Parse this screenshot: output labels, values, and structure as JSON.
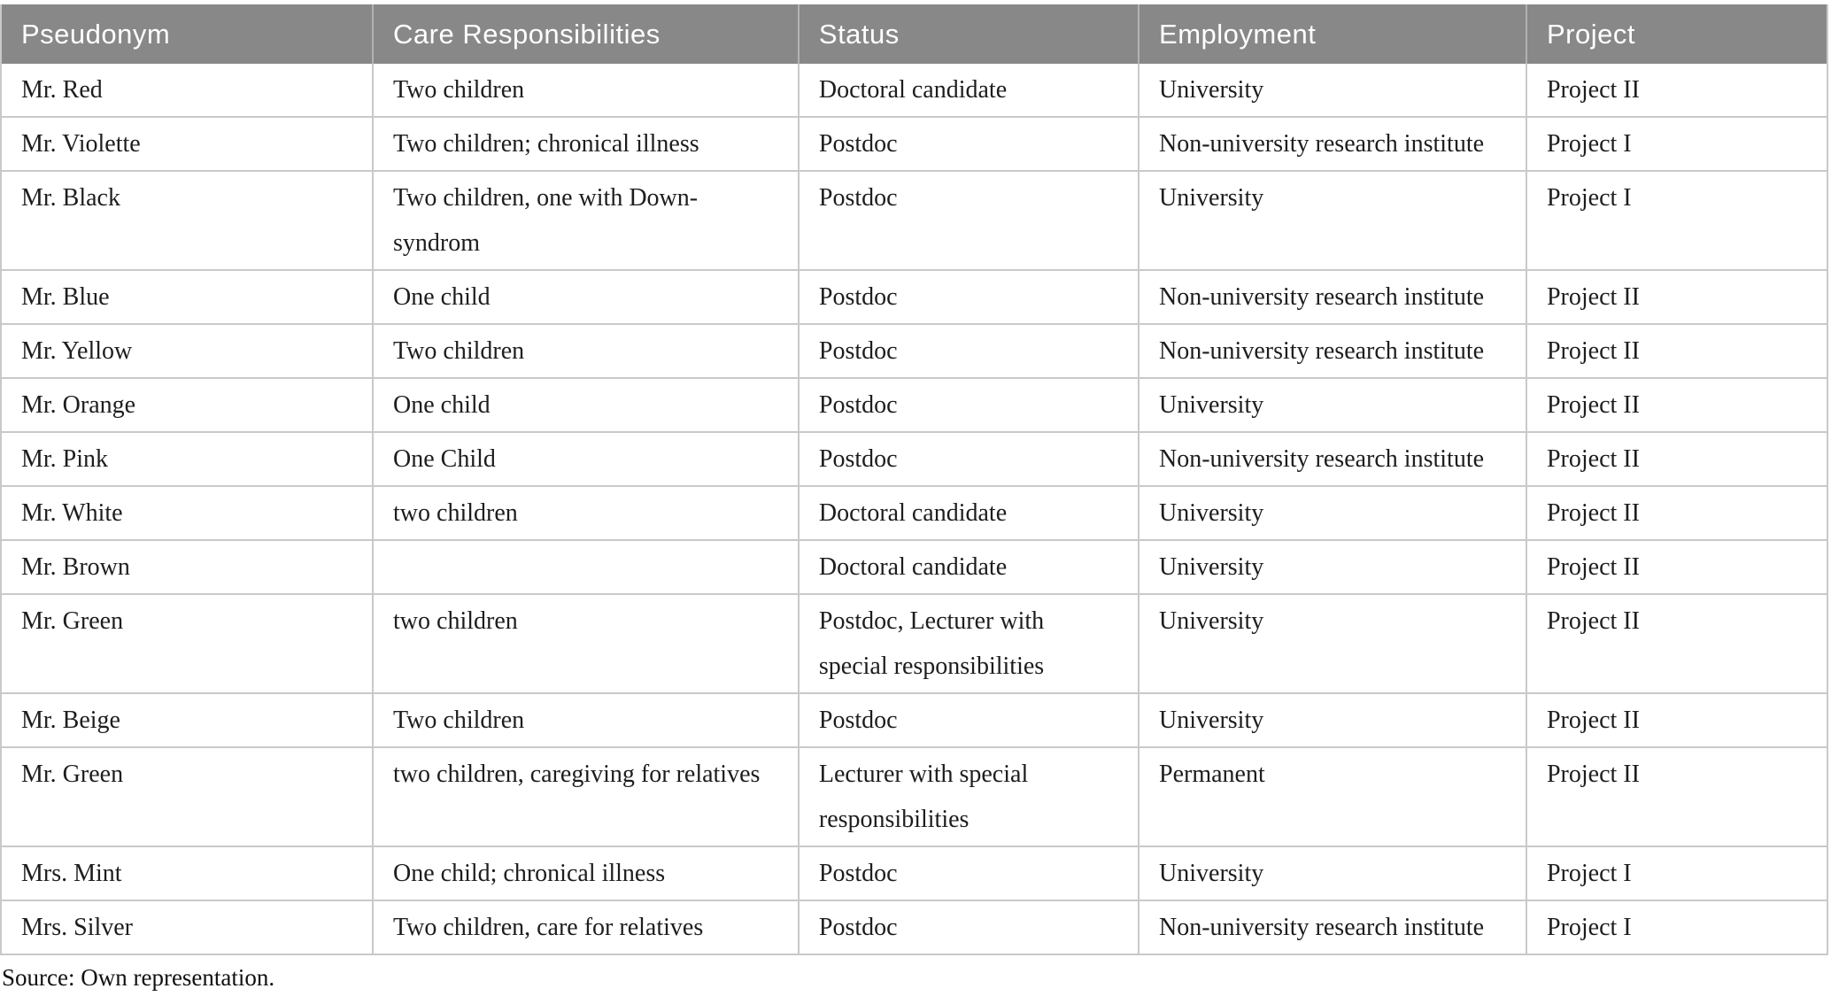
{
  "table": {
    "columns": [
      "Pseudonym",
      "Care Responsibilities",
      "Status",
      "Employment",
      "Project"
    ],
    "rows": [
      [
        "Mr. Red",
        "Two children",
        "Doctoral candidate",
        "University",
        "Project II"
      ],
      [
        "Mr. Violette",
        "Two children; chronical illness",
        "Postdoc",
        "Non-university research institute",
        "Project I"
      ],
      [
        "Mr. Black",
        "Two children, one with Down-syndrom",
        "Postdoc",
        "University",
        "Project I"
      ],
      [
        "Mr. Blue",
        "One child",
        "Postdoc",
        "Non-university research institute",
        "Project II"
      ],
      [
        "Mr. Yellow",
        "Two children",
        "Postdoc",
        "Non-university research institute",
        "Project II"
      ],
      [
        "Mr. Orange",
        "One child",
        "Postdoc",
        "University",
        "Project II"
      ],
      [
        "Mr. Pink",
        "One Child",
        "Postdoc",
        "Non-university research institute",
        "Project II"
      ],
      [
        "Mr. White",
        "two children",
        "Doctoral candidate",
        "University",
        "Project II"
      ],
      [
        "Mr. Brown",
        "",
        "Doctoral candidate",
        "University",
        "Project II"
      ],
      [
        "Mr. Green",
        "two children",
        "Postdoc, Lecturer with special responsibilities",
        "University",
        "Project II"
      ],
      [
        "Mr. Beige",
        "Two children",
        "Postdoc",
        "University",
        "Project II"
      ],
      [
        "Mr. Green",
        "two children, caregiving for relatives",
        "Lecturer with special responsibilities",
        "Permanent",
        "Project II"
      ],
      [
        "Mrs. Mint",
        "One child; chronical illness",
        "Postdoc",
        "University",
        "Project I"
      ],
      [
        "Mrs. Silver",
        "Two children, care for relatives",
        "Postdoc",
        "Non-university research institute",
        "Project I"
      ]
    ]
  },
  "footer": {
    "source_note": "Source: Own representation."
  },
  "colors": {
    "header_bg": "#888888",
    "header_text": "#ffffff",
    "header_divider": "#b2b2b2",
    "grid_line": "#c9c9c9",
    "body_text": "#1d1d1d"
  }
}
